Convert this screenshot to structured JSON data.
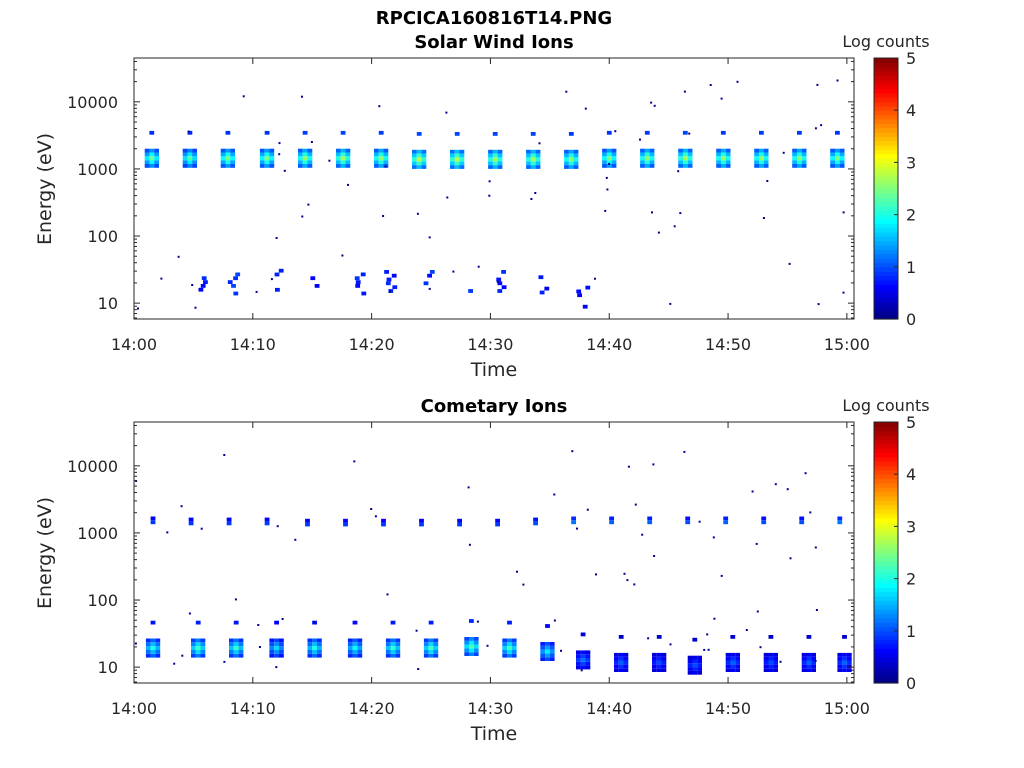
{
  "figure_title": "RPCICA160816T14.PNG",
  "chart_data": [
    {
      "type": "heatmap",
      "title": "Solar Wind Ions",
      "xlabel": "Time",
      "ylabel": "Energy (eV)",
      "x_ticks": [
        "14:00",
        "14:10",
        "14:20",
        "14:30",
        "14:40",
        "14:50",
        "15:00"
      ],
      "x_range_minutes": [
        0,
        60.6
      ],
      "y_scale": "log",
      "y_ticks": [
        "10",
        "100",
        "1000",
        "10000"
      ],
      "y_range": [
        5.8,
        45000
      ],
      "colorbar": {
        "label": "Log counts",
        "range": [
          0,
          5
        ],
        "ticks": [
          "0",
          "1",
          "2",
          "3",
          "4",
          "5"
        ],
        "colormap": "jet"
      },
      "grid": false,
      "bursts": [
        {
          "t": 1.3,
          "e_center": 1350,
          "peak_log_counts": 2.4
        },
        {
          "t": 4.5,
          "e_center": 1350,
          "peak_log_counts": 2.3
        },
        {
          "t": 7.7,
          "e_center": 1350,
          "peak_log_counts": 2.5
        },
        {
          "t": 11.0,
          "e_center": 1350,
          "peak_log_counts": 2.5
        },
        {
          "t": 14.2,
          "e_center": 1350,
          "peak_log_counts": 2.6
        },
        {
          "t": 17.4,
          "e_center": 1350,
          "peak_log_counts": 2.7
        },
        {
          "t": 20.6,
          "e_center": 1350,
          "peak_log_counts": 2.6
        },
        {
          "t": 23.8,
          "e_center": 1300,
          "peak_log_counts": 2.8
        },
        {
          "t": 27.0,
          "e_center": 1300,
          "peak_log_counts": 2.8
        },
        {
          "t": 30.2,
          "e_center": 1300,
          "peak_log_counts": 2.7
        },
        {
          "t": 33.4,
          "e_center": 1300,
          "peak_log_counts": 2.7
        },
        {
          "t": 36.6,
          "e_center": 1300,
          "peak_log_counts": 2.6
        },
        {
          "t": 39.8,
          "e_center": 1350,
          "peak_log_counts": 2.5
        },
        {
          "t": 43.0,
          "e_center": 1350,
          "peak_log_counts": 2.6
        },
        {
          "t": 46.2,
          "e_center": 1350,
          "peak_log_counts": 2.7
        },
        {
          "t": 49.4,
          "e_center": 1350,
          "peak_log_counts": 2.6
        },
        {
          "t": 52.6,
          "e_center": 1350,
          "peak_log_counts": 2.6
        },
        {
          "t": 55.8,
          "e_center": 1350,
          "peak_log_counts": 2.6
        },
        {
          "t": 59.0,
          "e_center": 1350,
          "peak_log_counts": 2.5
        }
      ],
      "low_energy_bursts": [
        {
          "t": 5.6,
          "e": 22,
          "peak_log_counts": 0.9
        },
        {
          "t": 8.2,
          "e": 22,
          "peak_log_counts": 1.0
        },
        {
          "t": 12.0,
          "e": 25,
          "peak_log_counts": 0.8
        },
        {
          "t": 15.2,
          "e": 22,
          "peak_log_counts": 0.8
        },
        {
          "t": 18.8,
          "e": 22,
          "peak_log_counts": 0.9
        },
        {
          "t": 21.4,
          "e": 24,
          "peak_log_counts": 1.0
        },
        {
          "t": 24.6,
          "e": 24,
          "peak_log_counts": 1.0
        },
        {
          "t": 27.8,
          "e": 24,
          "peak_log_counts": 1.0
        },
        {
          "t": 30.8,
          "e": 24,
          "peak_log_counts": 0.9
        },
        {
          "t": 34.4,
          "e": 20,
          "peak_log_counts": 0.8
        },
        {
          "t": 37.6,
          "e": 14,
          "peak_log_counts": 0.7
        }
      ]
    },
    {
      "type": "heatmap",
      "title": "Cometary Ions",
      "xlabel": "Time",
      "ylabel": "Energy (eV)",
      "x_ticks": [
        "14:00",
        "14:10",
        "14:20",
        "14:30",
        "14:40",
        "14:50",
        "15:00"
      ],
      "x_range_minutes": [
        0,
        60.6
      ],
      "y_scale": "log",
      "y_ticks": [
        "10",
        "100",
        "1000",
        "10000"
      ],
      "y_range": [
        5.8,
        45000
      ],
      "colorbar": {
        "label": "Log counts",
        "range": [
          0,
          5
        ],
        "ticks": [
          "0",
          "1",
          "2",
          "3",
          "4",
          "5"
        ],
        "colormap": "jet"
      },
      "grid": false,
      "bursts": [
        {
          "t": 1.4,
          "e_center": 18,
          "peak_log_counts": 2.0
        },
        {
          "t": 5.2,
          "e_center": 18,
          "peak_log_counts": 2.2
        },
        {
          "t": 8.4,
          "e_center": 18,
          "peak_log_counts": 2.1
        },
        {
          "t": 11.8,
          "e_center": 18,
          "peak_log_counts": 1.7
        },
        {
          "t": 15.0,
          "e_center": 18,
          "peak_log_counts": 2.0
        },
        {
          "t": 18.4,
          "e_center": 18,
          "peak_log_counts": 1.9
        },
        {
          "t": 21.6,
          "e_center": 18,
          "peak_log_counts": 2.1
        },
        {
          "t": 24.8,
          "e_center": 18,
          "peak_log_counts": 2.2
        },
        {
          "t": 28.2,
          "e_center": 19,
          "peak_log_counts": 2.3
        },
        {
          "t": 31.4,
          "e_center": 18,
          "peak_log_counts": 2.2
        },
        {
          "t": 34.6,
          "e_center": 16,
          "peak_log_counts": 1.8
        },
        {
          "t": 37.6,
          "e_center": 12,
          "peak_log_counts": 1.2
        },
        {
          "t": 40.8,
          "e_center": 11,
          "peak_log_counts": 1.1
        },
        {
          "t": 44.0,
          "e_center": 11,
          "peak_log_counts": 1.0
        },
        {
          "t": 47.0,
          "e_center": 10,
          "peak_log_counts": 1.0
        },
        {
          "t": 50.2,
          "e_center": 11,
          "peak_log_counts": 1.1
        },
        {
          "t": 53.4,
          "e_center": 11,
          "peak_log_counts": 1.0
        },
        {
          "t": 56.6,
          "e_center": 11,
          "peak_log_counts": 1.1
        },
        {
          "t": 59.6,
          "e_center": 11,
          "peak_log_counts": 1.1
        }
      ],
      "high_energy_bursts": [
        {
          "t": 1.4,
          "e": 1350,
          "peak_log_counts": 0.9
        },
        {
          "t": 4.6,
          "e": 1300,
          "peak_log_counts": 0.9
        },
        {
          "t": 7.8,
          "e": 1300,
          "peak_log_counts": 0.9
        },
        {
          "t": 11.0,
          "e": 1300,
          "peak_log_counts": 0.9
        },
        {
          "t": 14.4,
          "e": 1250,
          "peak_log_counts": 0.9
        },
        {
          "t": 17.6,
          "e": 1250,
          "peak_log_counts": 0.9
        },
        {
          "t": 20.8,
          "e": 1250,
          "peak_log_counts": 0.9
        },
        {
          "t": 24.0,
          "e": 1250,
          "peak_log_counts": 0.9
        },
        {
          "t": 27.2,
          "e": 1250,
          "peak_log_counts": 0.9
        },
        {
          "t": 30.4,
          "e": 1250,
          "peak_log_counts": 0.9
        },
        {
          "t": 33.6,
          "e": 1300,
          "peak_log_counts": 1.0
        },
        {
          "t": 36.8,
          "e": 1350,
          "peak_log_counts": 1.2
        },
        {
          "t": 40.0,
          "e": 1350,
          "peak_log_counts": 1.1
        },
        {
          "t": 43.2,
          "e": 1350,
          "peak_log_counts": 1.1
        },
        {
          "t": 46.4,
          "e": 1350,
          "peak_log_counts": 1.0
        },
        {
          "t": 49.6,
          "e": 1350,
          "peak_log_counts": 1.1
        },
        {
          "t": 52.8,
          "e": 1350,
          "peak_log_counts": 1.0
        },
        {
          "t": 56.0,
          "e": 1350,
          "peak_log_counts": 1.0
        },
        {
          "t": 59.2,
          "e": 1350,
          "peak_log_counts": 1.2
        }
      ]
    }
  ]
}
